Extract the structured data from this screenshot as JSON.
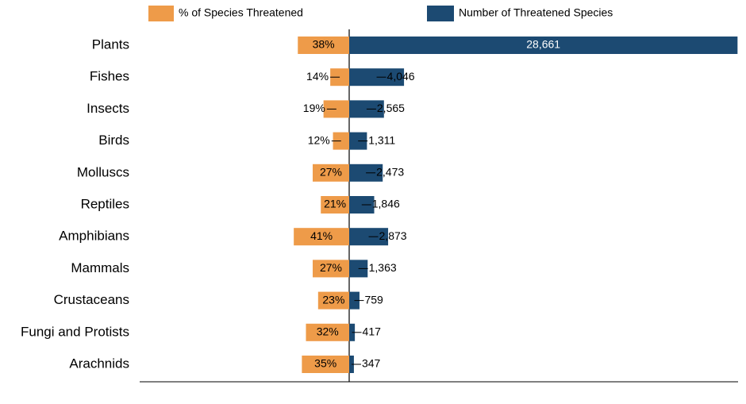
{
  "chart_data": {
    "type": "butterfly",
    "categories": [
      "Plants",
      "Fishes",
      "Insects",
      "Birds",
      "Molluscs",
      "Reptiles",
      "Amphibians",
      "Mammals",
      "Crustaceans",
      "Fungi and Protists",
      "Arachnids"
    ],
    "series": [
      {
        "name": "% of Species Threatened",
        "color": "#EE9B49",
        "xlim": [
          0,
          155
        ],
        "values": [
          38,
          14,
          19,
          12,
          27,
          21,
          41,
          27,
          23,
          32,
          35
        ],
        "value_labels": [
          "38%",
          "14%",
          "19%",
          "12%",
          "27%",
          "21%",
          "41%",
          "27%",
          "23%",
          "32%",
          "35%"
        ]
      },
      {
        "name": "Number of Threatened Species",
        "color": "#1C4A72",
        "xlim": [
          0,
          28700
        ],
        "values": [
          28661,
          4046,
          2565,
          1311,
          2473,
          1846,
          2873,
          1363,
          759,
          417,
          347
        ],
        "value_labels": [
          "28,661",
          "4,046",
          "2,565",
          "1,311",
          "2,473",
          "1,846",
          "2,873",
          "1,363",
          "759",
          "417",
          "347"
        ]
      }
    ]
  }
}
